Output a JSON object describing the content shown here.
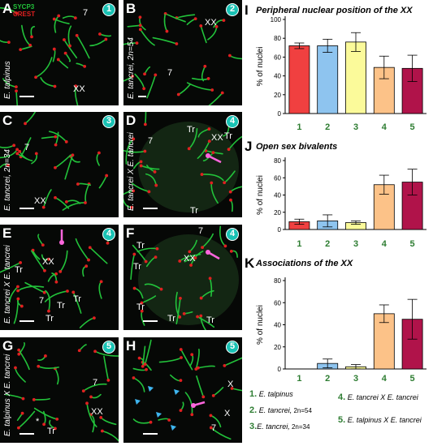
{
  "panels": [
    {
      "id": "A",
      "label": "A",
      "circle": "1",
      "side": "E. talpinus",
      "ann": [
        "7",
        "XX"
      ],
      "arrow": false
    },
    {
      "id": "B",
      "label": "B",
      "circle": "2",
      "side": "E. tancrei, 2n=54",
      "ann": [
        "XX",
        "7"
      ],
      "arrow": false
    },
    {
      "id": "C",
      "label": "C",
      "circle": "3",
      "side": "E. tancrei, 2n=34",
      "ann": [
        "7",
        "XX"
      ],
      "arrow": false
    },
    {
      "id": "D",
      "label": "D",
      "circle": "4",
      "side": "E. tancrei X E. tancrei",
      "ann": [
        "7",
        "Tr",
        "Tr",
        "XX",
        "Tr"
      ],
      "arrow": true
    },
    {
      "id": "E",
      "label": "E",
      "circle": "4",
      "side": "E. tancrei X E. tancrei",
      "ann": [
        "XX",
        "Tr",
        "7",
        "Tr",
        "Tr",
        "Tr"
      ],
      "arrow": true
    },
    {
      "id": "F",
      "label": "F",
      "circle": "4",
      "side": "",
      "ann": [
        "7",
        "Tr",
        "XX",
        "Tr",
        "Tr",
        "Tr",
        "Tr"
      ],
      "arrow": true
    },
    {
      "id": "G",
      "label": "G",
      "circle": "5",
      "side": "E. talpinus X E. tancrei",
      "ann": [
        "7",
        "XX",
        "Tr",
        "*"
      ],
      "arrow": false
    },
    {
      "id": "H",
      "label": "H",
      "circle": "5",
      "side": "",
      "ann": [
        "X",
        "X",
        "7"
      ],
      "arrow": true
    }
  ],
  "stain_legend": {
    "sycp3": "SYCP3",
    "crest": "CREST",
    "sycp3_color": "#22c23a",
    "crest_color": "#e02020"
  },
  "colors": {
    "c1": "#f04040",
    "c2": "#8ec4ef",
    "c3": "#fbfa9a",
    "c4": "#fcc288",
    "c5": "#b0134a",
    "green": "#2e7d32"
  },
  "chart_data": [
    {
      "type": "bar",
      "panel": "I",
      "title": "Peripheral  nuclear  position of the XX",
      "ylabel": "% of nuclei",
      "categories": [
        "1",
        "2",
        "3",
        "4",
        "5"
      ],
      "values": [
        72,
        72,
        76,
        49,
        48
      ],
      "errors": [
        3,
        7,
        10,
        12,
        14
      ],
      "ylim": [
        0,
        100
      ],
      "yticks": [
        0,
        20,
        40,
        60,
        80,
        100
      ]
    },
    {
      "type": "bar",
      "panel": "J",
      "title": "Open sex bivalents",
      "ylabel": "% of nuclei",
      "categories": [
        "1",
        "2",
        "3",
        "4",
        "5"
      ],
      "values": [
        9,
        10,
        8,
        52,
        55
      ],
      "errors": [
        3,
        7,
        2,
        11,
        15
      ],
      "ylim": [
        0,
        80
      ],
      "yticks": [
        0,
        20,
        40,
        60,
        80
      ]
    },
    {
      "type": "bar",
      "panel": "K",
      "title": "Associations of the XX",
      "ylabel": "% of nuclei",
      "categories": [
        "1",
        "2",
        "3",
        "4",
        "5"
      ],
      "values": [
        0,
        5,
        2,
        50,
        45
      ],
      "errors": [
        0,
        4,
        2,
        8,
        18
      ],
      "ylim": [
        0,
        80
      ],
      "yticks": [
        0,
        20,
        40,
        60,
        80
      ]
    }
  ],
  "legend": [
    {
      "num": "1.",
      "name": "E. talpinus",
      "suffix": ""
    },
    {
      "num": "2.",
      "name": "E. tancrei,",
      "suffix": " 2n=54"
    },
    {
      "num": "3.",
      "name": "E. tancrei,",
      "suffix": " 2n=34"
    },
    {
      "num": "4.",
      "name": "E. tancrei X E. tancrei",
      "suffix": ""
    },
    {
      "num": "5.",
      "name": "E. talpinus X E. tancrei",
      "suffix": ""
    }
  ]
}
